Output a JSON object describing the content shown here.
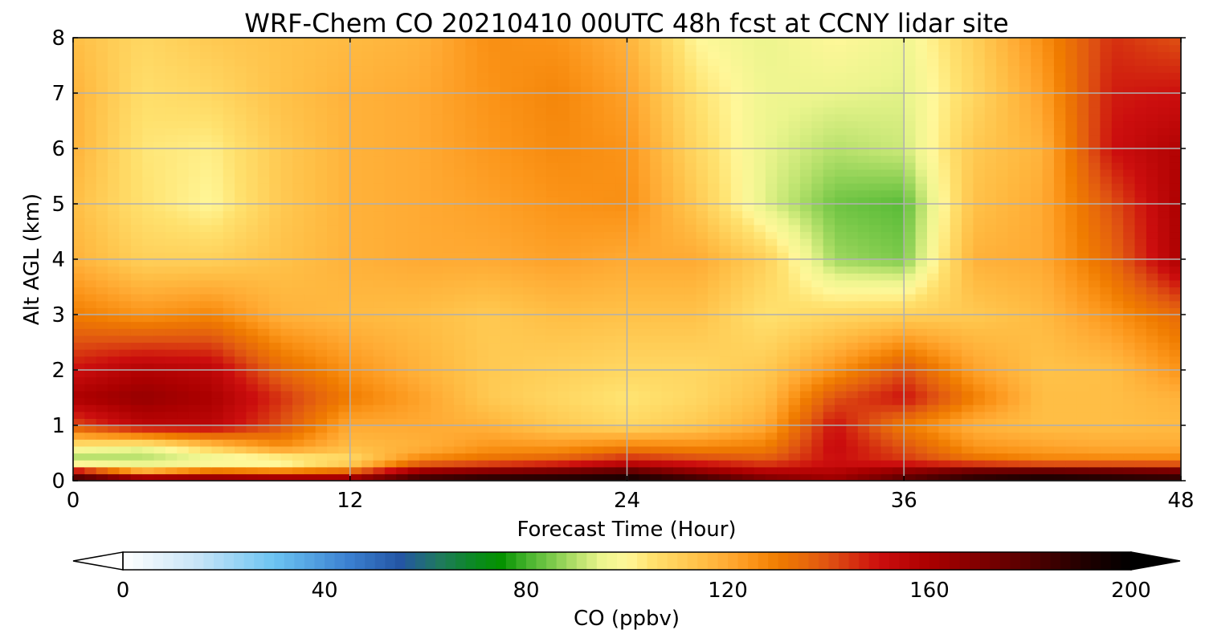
{
  "chart_data": {
    "type": "heatmap",
    "title": "WRF-Chem CO  20210410 00UTC 48h fcst at CCNY lidar site",
    "xlabel": "Forecast Time (Hour)",
    "ylabel": "Alt AGL (km)",
    "xlim": [
      0,
      48
    ],
    "ylim": [
      0,
      8
    ],
    "xticks": [
      "0",
      "12",
      "24",
      "36",
      "48"
    ],
    "yticks": [
      "0",
      "1",
      "2",
      "3",
      "4",
      "5",
      "6",
      "7",
      "8"
    ],
    "grid": true,
    "colorbar": {
      "label": "CO  (ppbv)",
      "range": [
        0,
        200
      ],
      "ticks": [
        "0",
        "40",
        "80",
        "120",
        "160",
        "200"
      ],
      "extend": "both"
    },
    "x": [
      0,
      3,
      6,
      9,
      12,
      15,
      18,
      21,
      24,
      27,
      30,
      33,
      36,
      39,
      42,
      45,
      48
    ],
    "y": [
      0,
      0.15,
      0.35,
      0.6,
      1,
      1.5,
      2,
      3,
      4,
      5,
      6,
      7,
      8
    ],
    "values": [
      [
        190,
        185,
        180,
        178,
        175,
        190,
        195,
        196,
        198,
        190,
        175,
        165,
        180,
        190,
        195,
        192,
        190
      ],
      [
        165,
        125,
        140,
        135,
        140,
        170,
        175,
        178,
        182,
        170,
        160,
        158,
        170,
        182,
        185,
        183,
        180
      ],
      [
        85,
        88,
        90,
        92,
        105,
        130,
        135,
        140,
        150,
        145,
        140,
        150,
        145,
        135,
        130,
        130,
        130
      ],
      [
        100,
        95,
        110,
        125,
        115,
        118,
        125,
        125,
        130,
        128,
        130,
        152,
        140,
        125,
        122,
        120,
        120
      ],
      [
        140,
        155,
        155,
        140,
        120,
        120,
        118,
        112,
        108,
        112,
        120,
        150,
        130,
        118,
        115,
        115,
        116
      ],
      [
        160,
        165,
        160,
        145,
        130,
        122,
        112,
        108,
        104,
        108,
        115,
        140,
        150,
        130,
        115,
        115,
        118
      ],
      [
        150,
        158,
        155,
        135,
        125,
        118,
        112,
        110,
        108,
        108,
        112,
        125,
        140,
        122,
        114,
        115,
        125
      ],
      [
        130,
        125,
        128,
        118,
        116,
        115,
        112,
        115,
        114,
        114,
        105,
        108,
        110,
        112,
        116,
        125,
        135
      ],
      [
        118,
        110,
        110,
        114,
        118,
        120,
        120,
        122,
        120,
        120,
        110,
        88,
        85,
        118,
        120,
        135,
        160
      ],
      [
        115,
        105,
        100,
        112,
        118,
        120,
        122,
        125,
        126,
        112,
        94,
        84,
        82,
        114,
        120,
        140,
        160
      ],
      [
        118,
        104,
        102,
        112,
        118,
        120,
        124,
        127,
        125,
        108,
        95,
        90,
        92,
        112,
        118,
        150,
        158
      ],
      [
        118,
        106,
        108,
        114,
        118,
        120,
        125,
        128,
        122,
        105,
        96,
        95,
        94,
        108,
        122,
        148,
        150
      ],
      [
        115,
        108,
        112,
        114,
        116,
        118,
        126,
        125,
        118,
        100,
        95,
        100,
        96,
        110,
        126,
        145,
        140
      ]
    ],
    "colorscale": [
      [
        0,
        "#ffffff"
      ],
      [
        15,
        "#c6e4f7"
      ],
      [
        30,
        "#6cc4f2"
      ],
      [
        45,
        "#3a7fd0"
      ],
      [
        55,
        "#2456a4"
      ],
      [
        63,
        "#1f7a5c"
      ],
      [
        70,
        "#0a8a1f"
      ],
      [
        75,
        "#059200"
      ],
      [
        80,
        "#44b32c"
      ],
      [
        85,
        "#7bc94a"
      ],
      [
        90,
        "#b7e16c"
      ],
      [
        95,
        "#ecf58e"
      ],
      [
        100,
        "#fff799"
      ],
      [
        105,
        "#ffe16e"
      ],
      [
        110,
        "#ffd05a"
      ],
      [
        115,
        "#ffbe45"
      ],
      [
        120,
        "#ffaa33"
      ],
      [
        125,
        "#fb9418"
      ],
      [
        130,
        "#f07c00"
      ],
      [
        135,
        "#e86a0a"
      ],
      [
        140,
        "#df5212"
      ],
      [
        150,
        "#cc0e0e"
      ],
      [
        160,
        "#ab0000"
      ],
      [
        170,
        "#800000"
      ],
      [
        180,
        "#520000"
      ],
      [
        190,
        "#240000"
      ],
      [
        200,
        "#000000"
      ]
    ]
  }
}
